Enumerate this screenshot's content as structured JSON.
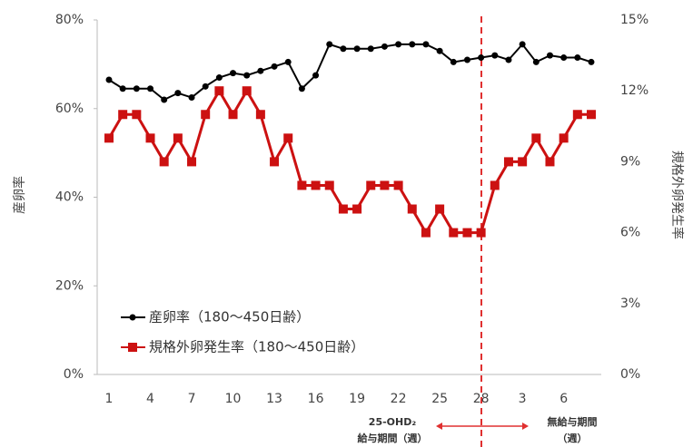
{
  "chart_data": {
    "type": "line",
    "y_label": "産卵率",
    "y2_label": "規格外卵発生率",
    "categories": [
      "1",
      null,
      null,
      "4",
      null,
      null,
      "7",
      null,
      null,
      "10",
      null,
      null,
      "13",
      null,
      null,
      "16",
      null,
      null,
      "19",
      null,
      null,
      "22",
      null,
      null,
      "25",
      null,
      null,
      "28",
      null,
      null,
      "3",
      null,
      null,
      "6",
      null,
      null
    ],
    "ylim": [
      0,
      80
    ],
    "yticks": [
      {
        "value": 0,
        "label": "0%"
      },
      {
        "value": 20,
        "label": "20%"
      },
      {
        "value": 40,
        "label": "40%"
      },
      {
        "value": 60,
        "label": "60%"
      },
      {
        "value": 80,
        "label": "80%"
      }
    ],
    "y2lim": [
      0,
      15
    ],
    "y2ticks": [
      {
        "value": 0,
        "label": "0%"
      },
      {
        "value": 3,
        "label": "3%"
      },
      {
        "value": 6,
        "label": "6%"
      },
      {
        "value": 9,
        "label": "9%"
      },
      {
        "value": 12,
        "label": "12%"
      },
      {
        "value": 15,
        "label": "15%"
      }
    ],
    "series": [
      {
        "name": "産卵率（180～450日齢）",
        "color": "#000000",
        "marker": "circle",
        "axis": "y",
        "values": [
          66.5,
          64.5,
          64.5,
          64.5,
          62,
          63.5,
          62.5,
          65,
          67,
          68,
          67.5,
          68.5,
          69.5,
          70.5,
          64.5,
          67.5,
          74.5,
          73.5,
          73.5,
          73.5,
          74,
          74.5,
          74.5,
          74.5,
          73,
          70.5,
          71,
          71.5,
          72,
          71,
          74.5,
          70.5,
          72,
          71.5,
          71.5,
          70.5
        ]
      },
      {
        "name": "規格外卵発生率（180～450日齢）",
        "color": "#cc1111",
        "marker": "square",
        "axis": "y2",
        "values": [
          10,
          11,
          11,
          10,
          9,
          10,
          9,
          11,
          12,
          11,
          12,
          11,
          9,
          10,
          8,
          8,
          8,
          7,
          7,
          8,
          8,
          8,
          7,
          6,
          7,
          6,
          6,
          6,
          8,
          9,
          9,
          10,
          9,
          10,
          11,
          11
        ]
      }
    ],
    "annotations": [
      {
        "lines": [
          "25-OHD₂",
          "給与期間（週）"
        ]
      },
      {
        "lines": [
          "無給与期間",
          "（週）"
        ]
      }
    ]
  }
}
